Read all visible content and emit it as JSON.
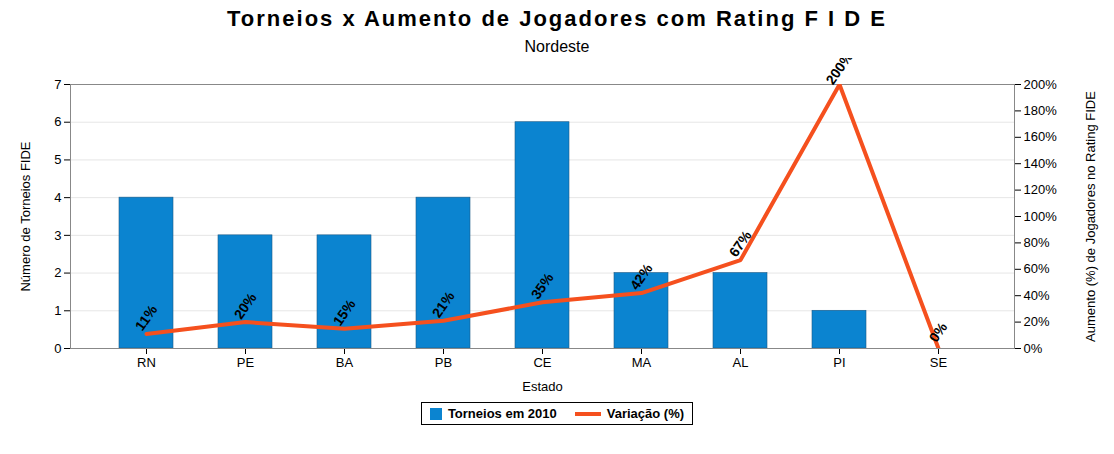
{
  "chart_data": {
    "type": "bar",
    "title": "Torneios x Aumento de Jogadores com Rating F I D E",
    "subtitle": "Nordeste",
    "x_label": "Estado",
    "y_label": "Número de Torneios FIDE",
    "y2_label": "Aumento (%) de Jogadores no Rating FIDE",
    "categories": [
      "RN",
      "PE",
      "BA",
      "PB",
      "CE",
      "MA",
      "AL",
      "PI",
      "SE"
    ],
    "series": [
      {
        "name": "Torneios em 2010",
        "type": "bar",
        "color": "#0b84d0",
        "values": [
          4,
          3,
          3,
          4,
          6,
          2,
          2,
          1,
          0
        ]
      },
      {
        "name": "Variação (%)",
        "type": "line",
        "color": "#f5501e",
        "axis": "y2",
        "values": [
          11,
          20,
          15,
          21,
          35,
          42,
          67,
          200,
          0
        ],
        "value_labels": [
          "11%",
          "20%",
          "15%",
          "21%",
          "35%",
          "42%",
          "67%",
          "200%",
          "0%"
        ],
        "data_labels": true
      }
    ],
    "ylim": [
      0,
      7
    ],
    "yticks": [
      0,
      1,
      2,
      3,
      4,
      5,
      6,
      7
    ],
    "y2lim": [
      0,
      200
    ],
    "y2ticks": [
      {
        "value": 0,
        "label": "0%"
      },
      {
        "value": 20,
        "label": "20%"
      },
      {
        "value": 40,
        "label": "40%"
      },
      {
        "value": 60,
        "label": "60%"
      },
      {
        "value": 80,
        "label": "80%"
      },
      {
        "value": 100,
        "label": "100%"
      },
      {
        "value": 120,
        "label": "120%"
      },
      {
        "value": 140,
        "label": "140%"
      },
      {
        "value": 160,
        "label": "160%"
      },
      {
        "value": 180,
        "label": "180%"
      },
      {
        "value": 200,
        "label": "200%"
      }
    ],
    "grid": true,
    "legend": "bottom"
  }
}
